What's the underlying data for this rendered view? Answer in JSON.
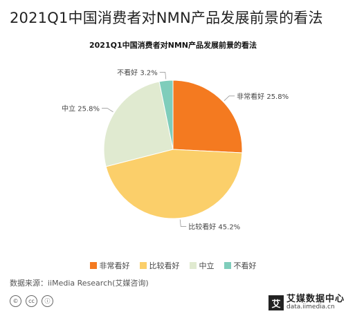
{
  "page_title": "2021Q1中国消费者对NMN产品发展前景的看法",
  "source_text": "数据来源：iiMedia Research(艾媒咨询)",
  "brand": {
    "name": "艾媒数据中心",
    "url": "data.iimedia.cn",
    "logo_char": "艾"
  },
  "cc_icons": [
    {
      "name": "copyright-icon",
      "glyph": "©"
    },
    {
      "name": "cc-icon",
      "glyph": "cc"
    },
    {
      "name": "attribution-icon",
      "glyph": "ⓘ"
    }
  ],
  "chart_data": {
    "type": "pie",
    "title": "2021Q1中国消费者对NMN产品发展前景的看法",
    "legend_position": "bottom",
    "slices": [
      {
        "label": "非常看好",
        "value": 25.8,
        "display": "25.8%",
        "color": "#f47a20"
      },
      {
        "label": "比较看好",
        "value": 45.2,
        "display": "45.2%",
        "color": "#fbcf6a"
      },
      {
        "label": "中立",
        "value": 25.8,
        "display": "25.8%",
        "color": "#e0ead0"
      },
      {
        "label": "不看好",
        "value": 3.2,
        "display": "3.2%",
        "color": "#7fcdbb"
      }
    ]
  }
}
